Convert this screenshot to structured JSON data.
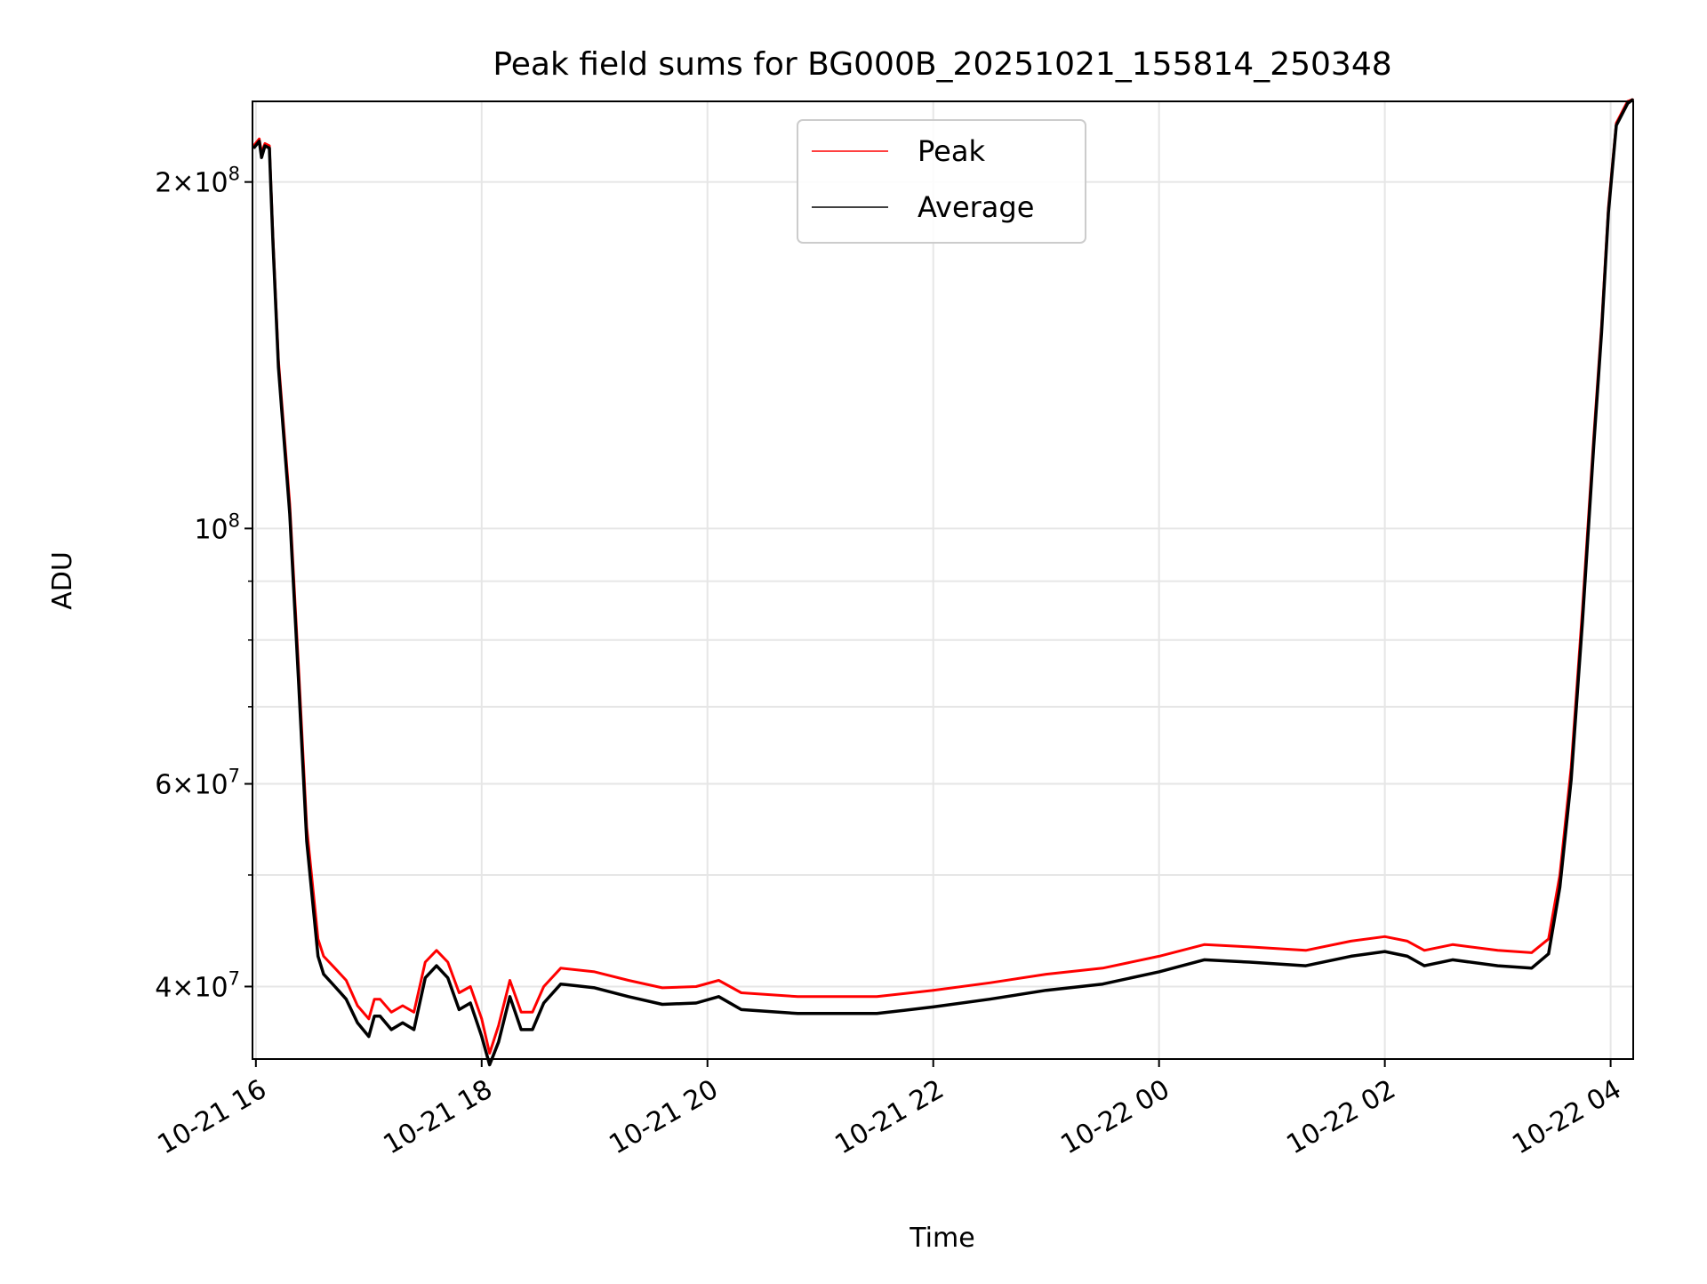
{
  "chart_data": {
    "type": "line",
    "title": "Peak field sums for BG000B_20251021_155814_250348",
    "xlabel": "Time",
    "ylabel": "ADU",
    "yscale": "log",
    "x_units": "hours since 10-21 16:00",
    "xlim": [
      -0.03,
      12.2
    ],
    "ylim": [
      34600000,
      235000000
    ],
    "x_ticks": [
      {
        "value": 0,
        "label": "10-21 16"
      },
      {
        "value": 2,
        "label": "10-21 18"
      },
      {
        "value": 4,
        "label": "10-21 20"
      },
      {
        "value": 6,
        "label": "10-21 22"
      },
      {
        "value": 8,
        "label": "10-22 00"
      },
      {
        "value": 10,
        "label": "10-22 02"
      },
      {
        "value": 12,
        "label": "10-22 04"
      }
    ],
    "y_ticks": [
      {
        "value": 40000000,
        "base": "4",
        "exp": "7"
      },
      {
        "value": 60000000,
        "base": "6",
        "exp": "7"
      },
      {
        "value": 100000000,
        "base": "",
        "exp": "8"
      },
      {
        "value": 200000000,
        "base": "2",
        "exp": "8"
      }
    ],
    "y_minor_grid": [
      50000000,
      70000000,
      80000000,
      90000000
    ],
    "grid": true,
    "legend_position": "top-center",
    "x": [
      -0.02,
      0.03,
      0.05,
      0.08,
      0.12,
      0.15,
      0.2,
      0.3,
      0.38,
      0.45,
      0.55,
      0.6,
      0.7,
      0.8,
      0.9,
      1.0,
      1.05,
      1.1,
      1.2,
      1.3,
      1.4,
      1.5,
      1.6,
      1.7,
      1.8,
      1.9,
      2.0,
      2.07,
      2.15,
      2.25,
      2.35,
      2.45,
      2.55,
      2.7,
      3.0,
      3.3,
      3.6,
      3.9,
      4.1,
      4.3,
      4.8,
      5.5,
      6.0,
      6.5,
      7.0,
      7.5,
      8.0,
      8.4,
      8.8,
      9.3,
      9.7,
      10.0,
      10.2,
      10.35,
      10.6,
      11.0,
      11.3,
      11.45,
      11.55,
      11.65,
      11.75,
      11.85,
      11.92,
      11.98,
      12.05,
      12.15,
      12.2
    ],
    "series": [
      {
        "name": "Peak",
        "color": "#ff0000",
        "values": [
          215000000.0,
          218000000.0,
          212000000.0,
          216000000.0,
          215000000.0,
          180000000.0,
          140000000.0,
          105000000.0,
          75000000.0,
          55000000.0,
          44000000.0,
          42500000.0,
          41500000.0,
          40500000.0,
          38500000.0,
          37500000.0,
          39000000.0,
          39000000.0,
          38000000.0,
          38500000.0,
          38000000.0,
          42000000.0,
          43000000.0,
          42000000.0,
          39500000.0,
          40000000.0,
          37500000.0,
          35000000.0,
          37000000.0,
          40500000.0,
          38000000.0,
          38000000.0,
          40000000.0,
          41500000.0,
          41200000.0,
          40500000.0,
          39900000.0,
          40000000.0,
          40500000.0,
          39500000.0,
          39200000.0,
          39200000.0,
          39700000.0,
          40300000.0,
          41000000.0,
          41500000.0,
          42500000.0,
          43500000.0,
          43300000.0,
          43000000.0,
          43800000.0,
          44200000.0,
          43800000.0,
          43000000.0,
          43500000.0,
          43000000.0,
          42800000.0,
          44000000.0,
          50000000.0,
          62000000.0,
          85000000.0,
          120000000.0,
          150000000.0,
          190000000.0,
          225000000.0,
          235000000.0,
          236000000.0
        ]
      },
      {
        "name": "Average",
        "color": "#000000",
        "values": [
          214000000.0,
          217000000.0,
          210000000.0,
          215000000.0,
          214000000.0,
          178000000.0,
          138000000.0,
          103000000.0,
          73000000.0,
          53500000.0,
          42500000.0,
          41000000.0,
          40000000.0,
          39000000.0,
          37200000.0,
          36200000.0,
          37700000.0,
          37700000.0,
          36700000.0,
          37200000.0,
          36700000.0,
          40700000.0,
          41700000.0,
          40700000.0,
          38200000.0,
          38700000.0,
          36200000.0,
          34200000.0,
          35800000.0,
          39200000.0,
          36700000.0,
          36700000.0,
          38700000.0,
          40200000.0,
          39900000.0,
          39200000.0,
          38600000.0,
          38700000.0,
          39200000.0,
          38200000.0,
          37900000.0,
          37900000.0,
          38400000.0,
          39000000.0,
          39700000.0,
          40200000.0,
          41200000.0,
          42200000.0,
          42000000.0,
          41700000.0,
          42500000.0,
          42900000.0,
          42500000.0,
          41700000.0,
          42200000.0,
          41700000.0,
          41500000.0,
          42700000.0,
          48800000.0,
          60500000.0,
          83000000.0,
          118000000.0,
          148000000.0,
          188000000.0,
          224000000.0,
          234000000.0,
          236000000.0
        ]
      }
    ]
  }
}
